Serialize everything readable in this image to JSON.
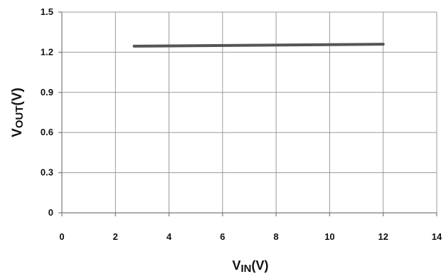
{
  "chart_data": {
    "type": "line",
    "title": "",
    "xlabel": {
      "main": "V",
      "sub": "IN",
      "unit": "(V)"
    },
    "ylabel": {
      "main": "V",
      "sub": "OUT",
      "unit": "(V)"
    },
    "xlim": [
      0,
      14
    ],
    "ylim": [
      0,
      1.5
    ],
    "x_ticks": [
      "0",
      "2",
      "4",
      "6",
      "8",
      "10",
      "12",
      "14"
    ],
    "y_ticks": [
      "0",
      "0.3",
      "0.6",
      "0.9",
      "1.2",
      "1.5"
    ],
    "grid": true,
    "legend": "none",
    "series": [
      {
        "color": "#555555",
        "x": [
          2.7,
          12
        ],
        "y": [
          1.245,
          1.26
        ]
      }
    ]
  }
}
